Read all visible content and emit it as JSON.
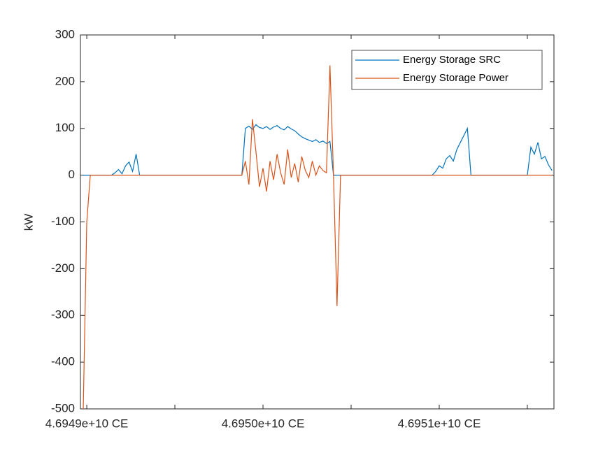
{
  "chart_data": {
    "type": "line",
    "ylabel": "kW",
    "x": [
      46948980000,
      46949000000,
      46949020000,
      46949040000,
      46949060000,
      46949080000,
      46949100000,
      46949120000,
      46949140000,
      46949160000,
      46949180000,
      46949200000,
      46949220000,
      46949240000,
      46949260000,
      46949280000,
      46949300000,
      46949320000,
      46949340000,
      46949360000,
      46949380000,
      46949400000,
      46949420000,
      46949440000,
      46949460000,
      46949480000,
      46949500000,
      46949520000,
      46949540000,
      46949560000,
      46949580000,
      46949600000,
      46949620000,
      46949640000,
      46949660000,
      46949680000,
      46949700000,
      46949720000,
      46949740000,
      46949760000,
      46949780000,
      46949800000,
      46949820000,
      46949840000,
      46949860000,
      46949880000,
      46949900000,
      46949920000,
      46949940000,
      46949960000,
      46949980000,
      46950000000,
      46950020000,
      46950040000,
      46950060000,
      46950080000,
      46950100000,
      46950120000,
      46950140000,
      46950160000,
      46950180000,
      46950200000,
      46950220000,
      46950240000,
      46950260000,
      46950280000,
      46950300000,
      46950320000,
      46950340000,
      46950360000,
      46950380000,
      46950400000,
      46950420000,
      46950440000,
      46950460000,
      46950480000,
      46950500000,
      46950520000,
      46950540000,
      46950560000,
      46950580000,
      46950600000,
      46950620000,
      46950640000,
      46950660000,
      46950680000,
      46950700000,
      46950720000,
      46950740000,
      46950760000,
      46950780000,
      46950800000,
      46950820000,
      46950840000,
      46950860000,
      46950880000,
      46950900000,
      46950920000,
      46950940000,
      46950960000,
      46950980000,
      46951000000,
      46951020000,
      46951040000,
      46951060000,
      46951080000,
      46951100000,
      46951120000,
      46951140000,
      46951160000,
      46951180000,
      46951200000,
      46951220000,
      46951240000,
      46951260000,
      46951280000,
      46951300000,
      46951320000,
      46951340000,
      46951360000,
      46951380000,
      46951400000,
      46951420000,
      46951440000,
      46951460000,
      46951480000,
      46951500000,
      46951520000,
      46951540000,
      46951560000,
      46951580000,
      46951600000,
      46951620000,
      46951640000
    ],
    "series": [
      {
        "name": "Energy Storage SRC",
        "color": "#0072BD",
        "values": [
          0,
          0,
          0,
          0,
          0,
          0,
          0,
          0,
          0,
          5,
          12,
          3,
          20,
          28,
          8,
          45,
          0,
          0,
          0,
          0,
          0,
          0,
          0,
          0,
          0,
          0,
          0,
          0,
          0,
          0,
          0,
          0,
          0,
          0,
          0,
          0,
          0,
          0,
          0,
          0,
          0,
          0,
          0,
          0,
          0,
          0,
          100,
          105,
          98,
          108,
          102,
          100,
          104,
          98,
          103,
          106,
          100,
          97,
          104,
          99,
          95,
          88,
          82,
          78,
          75,
          72,
          76,
          70,
          73,
          68,
          72,
          0,
          0,
          0,
          0,
          0,
          0,
          0,
          0,
          0,
          0,
          0,
          0,
          0,
          0,
          0,
          0,
          0,
          0,
          0,
          0,
          0,
          0,
          0,
          0,
          0,
          0,
          0,
          0,
          0,
          8,
          20,
          15,
          35,
          42,
          30,
          55,
          70,
          85,
          100,
          0,
          0,
          0,
          0,
          0,
          0,
          0,
          0,
          0,
          0,
          0,
          0,
          0,
          0,
          0,
          0,
          0,
          60,
          45,
          70,
          35,
          40,
          22,
          10
        ]
      },
      {
        "name": "Energy Storage Power",
        "color": "#D95319",
        "values": [
          -500,
          -100,
          0,
          0,
          0,
          0,
          0,
          0,
          0,
          0,
          0,
          0,
          0,
          0,
          0,
          0,
          0,
          0,
          0,
          0,
          0,
          0,
          0,
          0,
          0,
          0,
          0,
          0,
          0,
          0,
          0,
          0,
          0,
          0,
          0,
          0,
          0,
          0,
          0,
          0,
          0,
          0,
          0,
          0,
          0,
          0,
          30,
          -20,
          120,
          50,
          -25,
          15,
          -35,
          30,
          -10,
          45,
          5,
          -20,
          55,
          -5,
          25,
          -15,
          40,
          10,
          -5,
          30,
          0,
          20,
          10,
          5,
          235,
          0,
          -280,
          0,
          0,
          0,
          0,
          0,
          0,
          0,
          0,
          0,
          0,
          0,
          0,
          0,
          0,
          0,
          0,
          0,
          0,
          0,
          0,
          0,
          0,
          0,
          0,
          0,
          0,
          0,
          0,
          0,
          0,
          0,
          0,
          0,
          0,
          0,
          0,
          0,
          0,
          0,
          0,
          0,
          0,
          0,
          0,
          0,
          0,
          0,
          0,
          0,
          0,
          0,
          0,
          0,
          0,
          0,
          0,
          0,
          0,
          0,
          0,
          0
        ]
      }
    ],
    "xlim": [
      46948964000,
      46951651000
    ],
    "xticks": [
      {
        "value": 46949000000,
        "label": "4.6949e+10 CE"
      },
      {
        "value": 46949500000,
        "label": null
      },
      {
        "value": 46950000000,
        "label": "4.6950e+10 CE"
      },
      {
        "value": 46950500000,
        "label": null
      },
      {
        "value": 46951000000,
        "label": "4.6951e+10 CE"
      },
      {
        "value": 46951500000,
        "label": null
      }
    ],
    "ylim": [
      -500,
      300
    ],
    "yticks": [
      -500,
      -400,
      -300,
      -200,
      -100,
      0,
      100,
      200,
      300
    ],
    "grid": false,
    "legend": "northeast"
  }
}
